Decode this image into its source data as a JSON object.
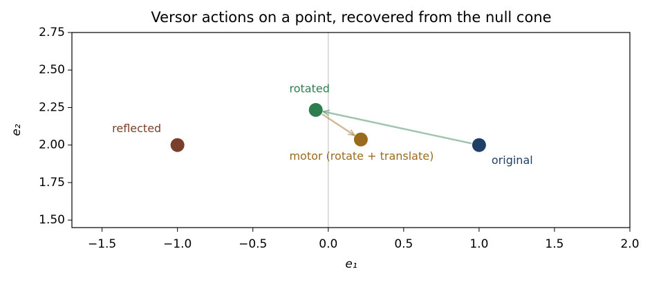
{
  "chart_data": {
    "type": "scatter",
    "title": "Versor actions on a point, recovered from the null cone",
    "xlabel": "e₁",
    "ylabel": "e₂",
    "xlim": [
      -1.7,
      2.0
    ],
    "ylim": [
      1.45,
      2.75
    ],
    "xticks": [
      {
        "value": -1.5,
        "label": "−1.5"
      },
      {
        "value": -1.0,
        "label": "−1.0"
      },
      {
        "value": -0.5,
        "label": "−0.5"
      },
      {
        "value": 0.0,
        "label": "0.0"
      },
      {
        "value": 0.5,
        "label": "0.5"
      },
      {
        "value": 1.0,
        "label": "1.0"
      },
      {
        "value": 1.5,
        "label": "1.5"
      },
      {
        "value": 2.0,
        "label": "2.0"
      }
    ],
    "yticks": [
      {
        "value": 1.5,
        "label": "1.50"
      },
      {
        "value": 1.75,
        "label": "1.75"
      },
      {
        "value": 2.0,
        "label": "2.00"
      },
      {
        "value": 2.25,
        "label": "2.25"
      },
      {
        "value": 2.5,
        "label": "2.50"
      },
      {
        "value": 2.75,
        "label": "2.75"
      }
    ],
    "vline": 0,
    "series": [
      {
        "name": "original",
        "color": "#1f3f66",
        "x": [
          1.0
        ],
        "values": [
          2.0
        ]
      },
      {
        "name": "rotated",
        "color": "#2e7d4f",
        "x": [
          -0.083
        ],
        "values": [
          2.234
        ]
      },
      {
        "name": "motor (rotate + translate)",
        "color": "#9a6b1e",
        "x": [
          0.216
        ],
        "values": [
          2.037
        ]
      },
      {
        "name": "reflected",
        "color": "#7a3f2a",
        "x": [
          -1.0
        ],
        "values": [
          2.0
        ]
      }
    ]
  }
}
